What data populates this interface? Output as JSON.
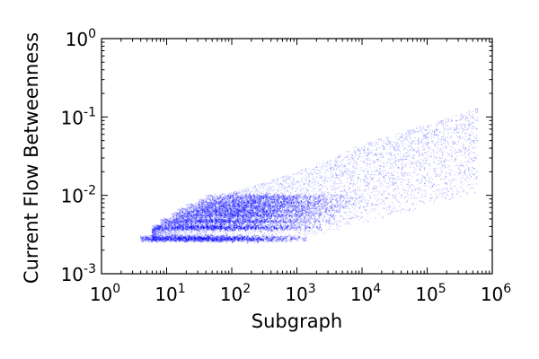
{
  "chart_data": {
    "type": "scatter",
    "title": "",
    "xlabel": "Subgraph",
    "ylabel": "Current Flow Betweenness",
    "x_scale": "log",
    "y_scale": "log",
    "xlim": [
      1,
      1000000
    ],
    "ylim": [
      0.001,
      1
    ],
    "grid": false,
    "legend": "none",
    "point_color": "#0000ff",
    "x_ticks": [
      {
        "base": "10",
        "exp": "0",
        "value": 1
      },
      {
        "base": "10",
        "exp": "1",
        "value": 10
      },
      {
        "base": "10",
        "exp": "2",
        "value": 100
      },
      {
        "base": "10",
        "exp": "3",
        "value": 1000
      },
      {
        "base": "10",
        "exp": "4",
        "value": 10000
      },
      {
        "base": "10",
        "exp": "5",
        "value": 100000
      },
      {
        "base": "10",
        "exp": "6",
        "value": 1000000
      }
    ],
    "y_ticks": [
      {
        "base": "10",
        "exp": "-3",
        "value": 0.001
      },
      {
        "base": "10",
        "exp": "-2",
        "value": 0.01
      },
      {
        "base": "10",
        "exp": "-1",
        "value": 0.1
      },
      {
        "base": "10",
        "exp": "0",
        "value": 1
      }
    ],
    "bands": [
      {
        "y": 0.0028,
        "x_min": 4,
        "x_max": 1500,
        "density": 1.0
      },
      {
        "y": 0.0039,
        "x_min": 6,
        "x_max": 2500,
        "density": 0.75
      },
      {
        "y": 0.0047,
        "x_min": 8,
        "x_max": 3500,
        "density": 0.6
      },
      {
        "y": 0.0056,
        "x_min": 12,
        "x_max": 4000,
        "density": 0.5
      },
      {
        "y": 0.0064,
        "x_min": 15,
        "x_max": 5000,
        "density": 0.45
      },
      {
        "y": 0.0073,
        "x_min": 20,
        "x_max": 6000,
        "density": 0.4
      },
      {
        "y": 0.0083,
        "x_min": 30,
        "x_max": 7000,
        "density": 0.35
      },
      {
        "y": 0.0095,
        "x_min": 40,
        "x_max": 8000,
        "density": 0.3
      }
    ],
    "upper_envelope": [
      {
        "x": 4,
        "y": 0.0032
      },
      {
        "x": 100,
        "y": 0.011
      },
      {
        "x": 1000,
        "y": 0.02
      },
      {
        "x": 10000,
        "y": 0.045
      },
      {
        "x": 100000,
        "y": 0.08
      },
      {
        "x": 600000,
        "y": 0.13
      }
    ]
  }
}
